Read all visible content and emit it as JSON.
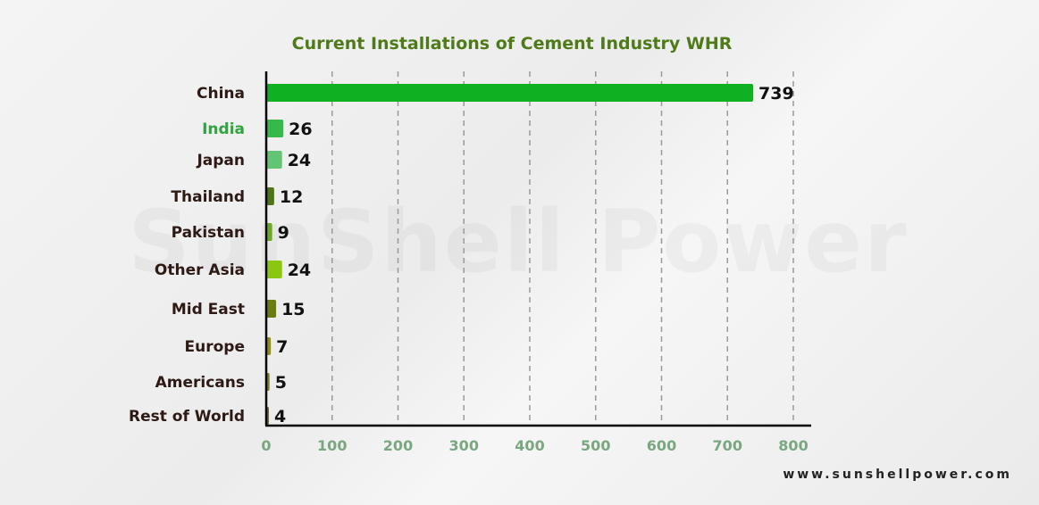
{
  "watermark_text": "SunShell Power",
  "website": "www.sunshellpower.com",
  "chart_data": {
    "type": "bar",
    "orientation": "horizontal",
    "title": "Current Installations of Cement Industry WHR",
    "xlabel": "",
    "ylabel": "",
    "xlim": [
      0,
      800
    ],
    "xticks": [
      0,
      100,
      200,
      300,
      400,
      500,
      600,
      700,
      800
    ],
    "grid": "vertical-dashed",
    "categories": [
      "China",
      "India",
      "Japan",
      "Thailand",
      "Pakistan",
      "Other Asia",
      "Mid East",
      "Europe",
      "Americans",
      "Rest of World"
    ],
    "values": [
      739,
      26,
      24,
      12,
      9,
      24,
      15,
      7,
      5,
      4
    ],
    "bar_colors": [
      "#0fb022",
      "#36b94a",
      "#61c574",
      "#4d7415",
      "#6aab1e",
      "#8bc70e",
      "#6a7c12",
      "#8f8f18",
      "#7c7f28",
      "#6c6a28"
    ],
    "highlight_category": "India",
    "colors": {
      "title": "#4e7a19",
      "highlight_label": "#2fa43f",
      "label": "#2d1a14",
      "tick_label": "#7aa780",
      "value_label": "#111111",
      "axis": "#000000",
      "grid": "#9a9a9a"
    }
  }
}
